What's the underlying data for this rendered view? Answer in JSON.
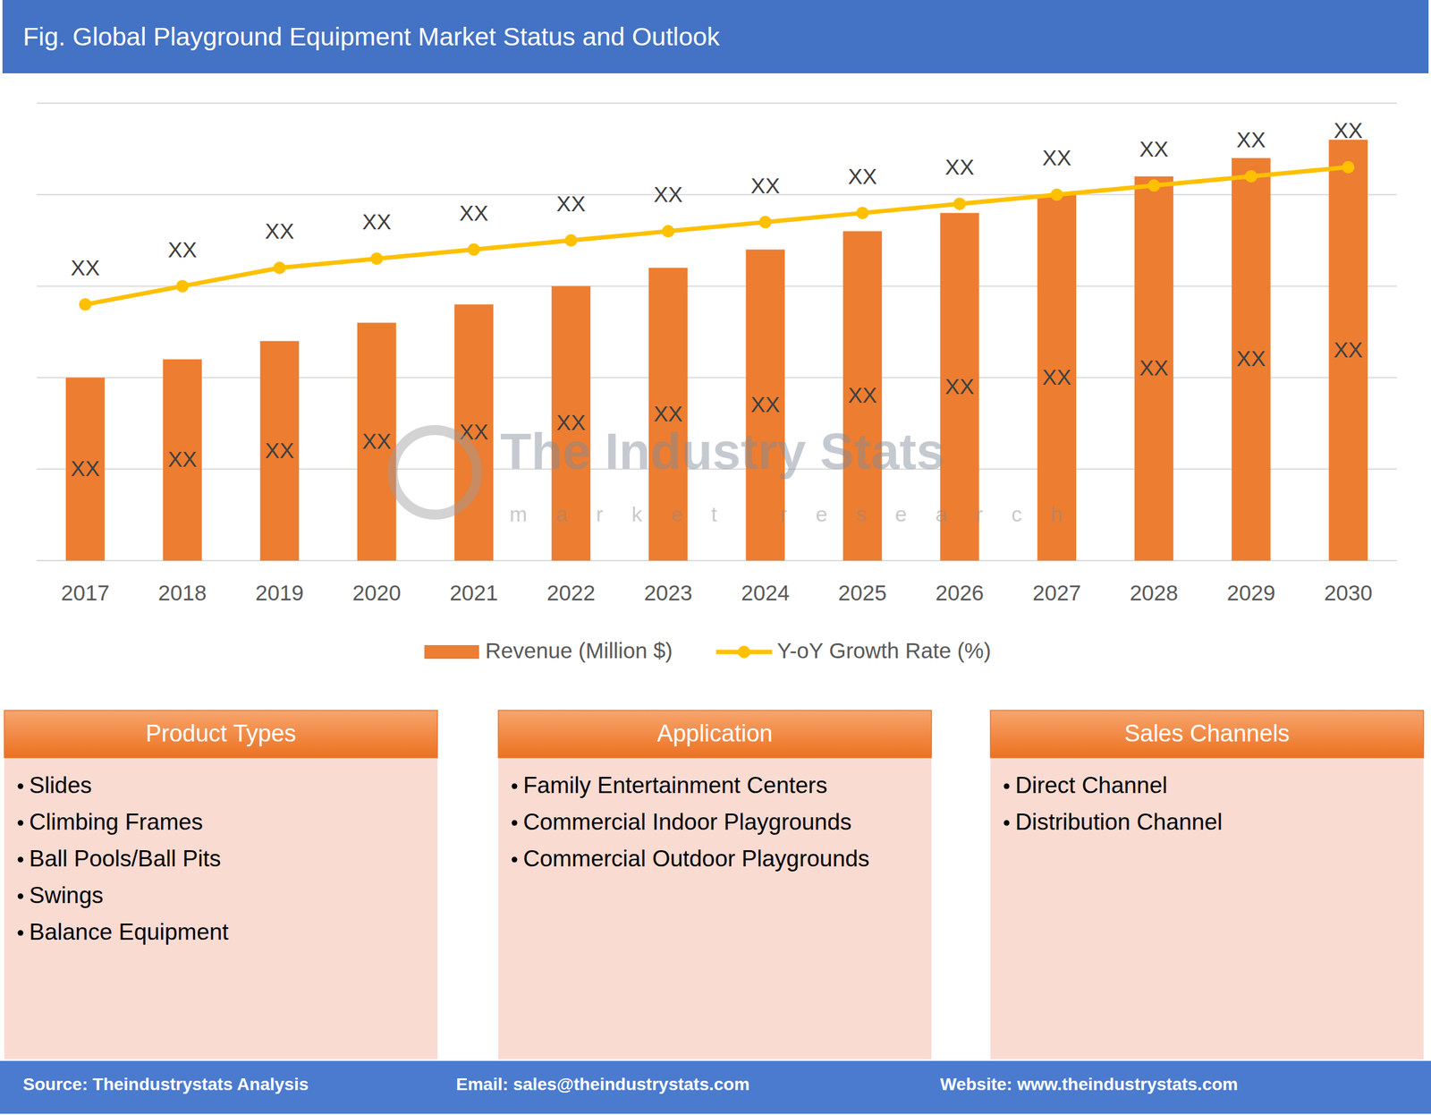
{
  "chart_data": {
    "type": "bar",
    "title": "Fig. Global Playground Equipment Market Status and Outlook",
    "categories": [
      "2017",
      "2018",
      "2019",
      "2020",
      "2021",
      "2022",
      "2023",
      "2024",
      "2025",
      "2026",
      "2027",
      "2028",
      "2029",
      "2030"
    ],
    "series": [
      {
        "name": "Revenue (Million $)",
        "type": "bar",
        "color": "#ed7d31",
        "values": [
          2.0,
          2.2,
          2.4,
          2.6,
          2.8,
          3.0,
          3.2,
          3.4,
          3.6,
          3.8,
          4.0,
          4.2,
          4.4,
          4.6
        ],
        "value_labels": [
          "XX",
          "XX",
          "XX",
          "XX",
          "XX",
          "XX",
          "XX",
          "XX",
          "XX",
          "XX",
          "XX",
          "XX",
          "XX",
          "XX"
        ]
      },
      {
        "name": "Y-oY Growth Rate (%)",
        "type": "line",
        "color": "#ffc000",
        "marker": "circle",
        "line_style": "solid",
        "values": [
          2.8,
          3.0,
          3.2,
          3.3,
          3.4,
          3.5,
          3.6,
          3.7,
          3.8,
          3.9,
          4.0,
          4.1,
          4.2,
          4.3
        ],
        "value_labels": [
          "XX",
          "XX",
          "XX",
          "XX",
          "XX",
          "XX",
          "XX",
          "XX",
          "XX",
          "XX",
          "XX",
          "XX",
          "XX",
          "XX"
        ]
      }
    ],
    "ylim": [
      0,
      5
    ],
    "yticks": [
      0,
      1,
      2,
      3,
      4,
      5
    ],
    "grid": true,
    "tick_labels": "x",
    "data_labels": true,
    "legend": "bottom"
  },
  "watermark": {
    "title": "The Industry Stats",
    "subtitle": "market research"
  },
  "panels": [
    {
      "title": "Product Types",
      "items": [
        "Slides",
        "Climbing Frames",
        "Ball Pools/Ball Pits",
        "Swings",
        "Balance Equipment"
      ]
    },
    {
      "title": "Application",
      "items": [
        "Family Entertainment Centers",
        "Commercial Indoor Playgrounds",
        "Commercial Outdoor Playgrounds"
      ]
    },
    {
      "title": "Sales Channels",
      "items": [
        "Direct Channel",
        "Distribution Channel"
      ]
    }
  ],
  "footer": {
    "source": "Source: Theindustrystats Analysis",
    "email": "Email: sales@theindustrystats.com",
    "website": "Website: www.theindustrystats.com"
  }
}
